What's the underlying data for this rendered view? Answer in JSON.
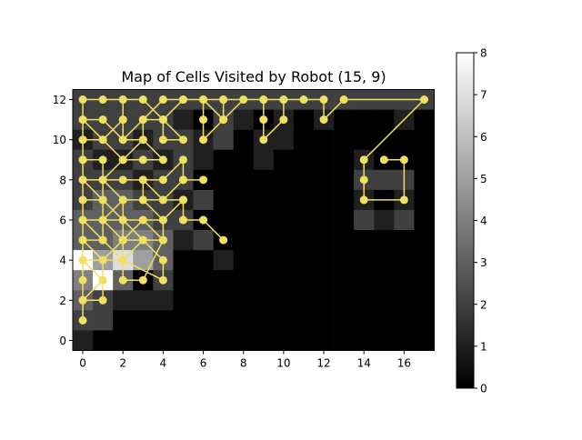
{
  "chart_data": {
    "type": "heatmap",
    "title": "Map of Cells Visited by Robot (15, 9)",
    "xlabel": "",
    "ylabel": "",
    "x_ticks": [
      0,
      2,
      4,
      6,
      8,
      10,
      12,
      14,
      16
    ],
    "y_ticks": [
      0,
      2,
      4,
      6,
      8,
      10,
      12
    ],
    "xlim": [
      -0.5,
      17.5
    ],
    "ylim": [
      -0.5,
      12.5
    ],
    "colormap": "gray",
    "colorbar": {
      "min": 0,
      "max": 8,
      "ticks": [
        0,
        1,
        2,
        3,
        4,
        5,
        6,
        7,
        8
      ]
    },
    "path_color": "#f0e060",
    "grid": false,
    "visits_rows_top_to_bottom": [
      [
        2,
        2,
        2,
        2,
        2,
        2,
        2,
        2,
        2,
        2,
        2,
        2,
        2,
        2,
        2,
        2,
        2,
        2
      ],
      [
        2,
        2,
        2,
        2,
        2,
        1,
        0,
        2,
        1,
        0,
        1,
        0,
        1,
        0,
        0,
        0,
        1,
        0
      ],
      [
        1,
        2,
        2,
        1,
        2,
        2,
        1,
        2,
        0,
        1,
        1,
        0,
        0,
        0,
        0,
        0,
        0,
        0
      ],
      [
        2,
        1,
        1,
        2,
        1,
        2,
        1,
        0,
        0,
        1,
        0,
        0,
        0,
        0,
        1,
        0,
        0,
        0
      ],
      [
        2,
        2,
        2,
        1,
        2,
        2,
        0,
        0,
        0,
        0,
        0,
        0,
        0,
        0,
        2,
        2,
        2,
        0
      ],
      [
        2,
        3,
        3,
        2,
        2,
        1,
        2,
        0,
        0,
        0,
        0,
        0,
        0,
        0,
        1,
        0,
        1,
        0
      ],
      [
        3,
        3,
        3,
        3,
        2,
        2,
        0,
        0,
        0,
        0,
        0,
        0,
        0,
        0,
        2,
        1,
        2,
        0
      ],
      [
        3,
        3,
        4,
        4,
        3,
        1,
        2,
        0,
        0,
        0,
        0,
        0,
        0,
        0,
        0,
        0,
        0,
        0
      ],
      [
        8,
        5,
        7,
        5,
        3,
        0,
        0,
        1,
        0,
        0,
        0,
        0,
        0,
        0,
        0,
        0,
        0,
        0
      ],
      [
        4,
        8,
        3,
        0,
        2,
        0,
        0,
        0,
        0,
        0,
        0,
        0,
        0,
        0,
        0,
        0,
        0,
        0
      ],
      [
        3,
        2,
        1,
        1,
        1,
        0,
        0,
        0,
        0,
        0,
        0,
        0,
        0,
        0,
        0,
        0,
        0,
        0
      ],
      [
        2,
        2,
        0,
        0,
        0,
        0,
        0,
        0,
        0,
        0,
        0,
        0,
        0,
        0,
        0,
        0,
        0,
        0
      ],
      [
        1,
        0,
        0,
        0,
        0,
        0,
        0,
        0,
        0,
        0,
        0,
        0,
        0,
        0,
        0,
        0,
        0,
        0
      ]
    ],
    "path_points": [
      [
        0,
        1
      ],
      [
        0,
        2
      ],
      [
        1,
        2
      ],
      [
        1,
        3
      ],
      [
        0,
        4
      ],
      [
        0,
        3
      ],
      [
        0,
        2
      ],
      [
        1,
        3
      ],
      [
        1,
        4
      ],
      [
        0,
        4
      ],
      [
        0,
        5
      ],
      [
        1,
        5
      ],
      [
        2,
        4
      ],
      [
        1,
        4
      ],
      [
        2,
        5
      ],
      [
        3,
        5
      ],
      [
        2,
        5
      ],
      [
        1,
        6
      ],
      [
        2,
        6
      ],
      [
        3,
        6
      ],
      [
        4,
        5
      ],
      [
        3,
        5
      ],
      [
        2,
        4
      ],
      [
        2,
        5
      ],
      [
        3,
        6
      ],
      [
        4,
        6
      ],
      [
        4,
        5
      ],
      [
        3,
        3
      ],
      [
        2,
        3
      ],
      [
        2,
        4
      ],
      [
        1,
        4
      ],
      [
        0,
        5
      ],
      [
        0,
        6
      ],
      [
        1,
        5
      ],
      [
        1,
        6
      ],
      [
        0,
        6
      ],
      [
        0,
        7
      ],
      [
        1,
        7
      ],
      [
        1,
        8
      ],
      [
        0,
        8
      ],
      [
        1,
        7
      ],
      [
        2,
        6
      ],
      [
        3,
        5
      ],
      [
        4,
        4
      ],
      [
        4,
        3
      ],
      [
        2,
        4
      ],
      [
        2,
        5
      ],
      [
        2,
        6
      ],
      [
        2,
        7
      ],
      [
        1,
        8
      ],
      [
        1,
        9
      ],
      [
        0,
        9
      ],
      [
        0,
        10
      ],
      [
        1,
        10
      ],
      [
        2,
        9
      ],
      [
        1,
        8
      ],
      [
        2,
        8
      ],
      [
        3,
        8
      ],
      [
        4,
        7
      ],
      [
        5,
        7
      ],
      [
        5,
        6
      ],
      [
        6,
        6
      ],
      [
        7,
        5
      ],
      [
        6,
        6
      ],
      [
        5,
        6
      ],
      [
        5,
        7
      ],
      [
        4,
        6
      ],
      [
        3,
        7
      ],
      [
        3,
        8
      ],
      [
        4,
        8
      ],
      [
        5,
        9
      ],
      [
        5,
        8
      ],
      [
        6,
        8
      ],
      [
        5,
        8
      ],
      [
        4,
        7
      ],
      [
        3,
        7
      ],
      [
        2,
        7
      ],
      [
        1,
        6
      ],
      [
        1,
        7
      ],
      [
        0,
        7
      ],
      [
        0,
        8
      ],
      [
        0,
        9
      ],
      [
        0,
        10
      ],
      [
        0,
        11
      ],
      [
        1,
        10
      ],
      [
        2,
        11
      ],
      [
        2,
        12
      ],
      [
        1,
        12
      ],
      [
        0,
        12
      ],
      [
        0,
        11
      ],
      [
        1,
        11
      ],
      [
        2,
        10
      ],
      [
        3,
        11
      ],
      [
        4,
        11
      ],
      [
        4,
        10
      ],
      [
        5,
        10
      ],
      [
        4,
        11
      ],
      [
        3,
        12
      ],
      [
        2,
        12
      ],
      [
        2,
        11
      ],
      [
        2,
        10
      ],
      [
        3,
        10
      ],
      [
        2,
        9
      ],
      [
        3,
        9
      ],
      [
        4,
        9
      ],
      [
        3,
        10
      ],
      [
        3,
        11
      ],
      [
        4,
        12
      ],
      [
        5,
        12
      ],
      [
        4,
        11
      ],
      [
        5,
        12
      ],
      [
        6,
        12
      ],
      [
        6,
        11
      ],
      [
        6,
        10
      ],
      [
        7,
        11
      ],
      [
        7,
        12
      ],
      [
        8,
        12
      ],
      [
        7,
        11
      ],
      [
        6,
        12
      ],
      [
        7,
        12
      ],
      [
        9,
        12
      ],
      [
        9,
        11
      ],
      [
        9,
        10
      ],
      [
        10,
        11
      ],
      [
        10,
        12
      ],
      [
        9,
        12
      ],
      [
        10,
        12
      ],
      [
        11,
        12
      ],
      [
        12,
        12
      ],
      [
        12,
        11
      ],
      [
        13,
        12
      ],
      [
        17,
        12
      ],
      [
        14,
        9
      ],
      [
        14,
        8
      ],
      [
        14,
        7
      ],
      [
        16,
        7
      ],
      [
        16,
        9
      ],
      [
        15,
        9
      ]
    ]
  }
}
